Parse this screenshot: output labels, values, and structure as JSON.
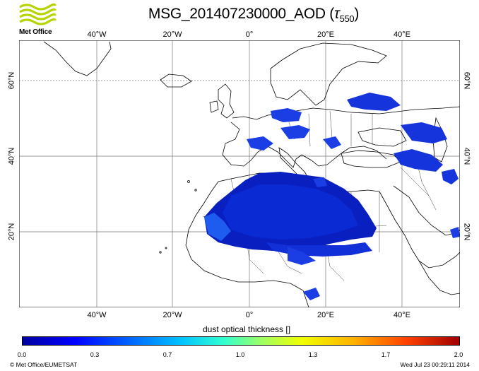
{
  "header": {
    "logo_text": "Met Office",
    "title_main": "MSG_201407230000_AOD (",
    "title_tau": "τ",
    "title_sub": "550",
    "title_close": ")"
  },
  "map": {
    "lon_labels": [
      "40°W",
      "20°W",
      "0°",
      "20°E",
      "40°E"
    ],
    "lat_labels_left": [
      "60°N",
      "40°N",
      "20°N"
    ],
    "lat_labels_right": [
      "60°N",
      "40°N",
      "20°N"
    ]
  },
  "colorbar": {
    "title": "dust optical thickness []",
    "ticks": [
      "0.0",
      "0.3",
      "0.7",
      "1.0",
      "1.3",
      "1.7",
      "2.0"
    ],
    "colors": [
      "#0000a0",
      "#0000ff",
      "#00c0ff",
      "#a0ff60",
      "#f0ff00",
      "#ff4000",
      "#a00000"
    ]
  },
  "footer": {
    "credit": "© Met Office/EUMETSAT",
    "timestamp": "Wed Jul 23 00:29:11 2014"
  }
}
